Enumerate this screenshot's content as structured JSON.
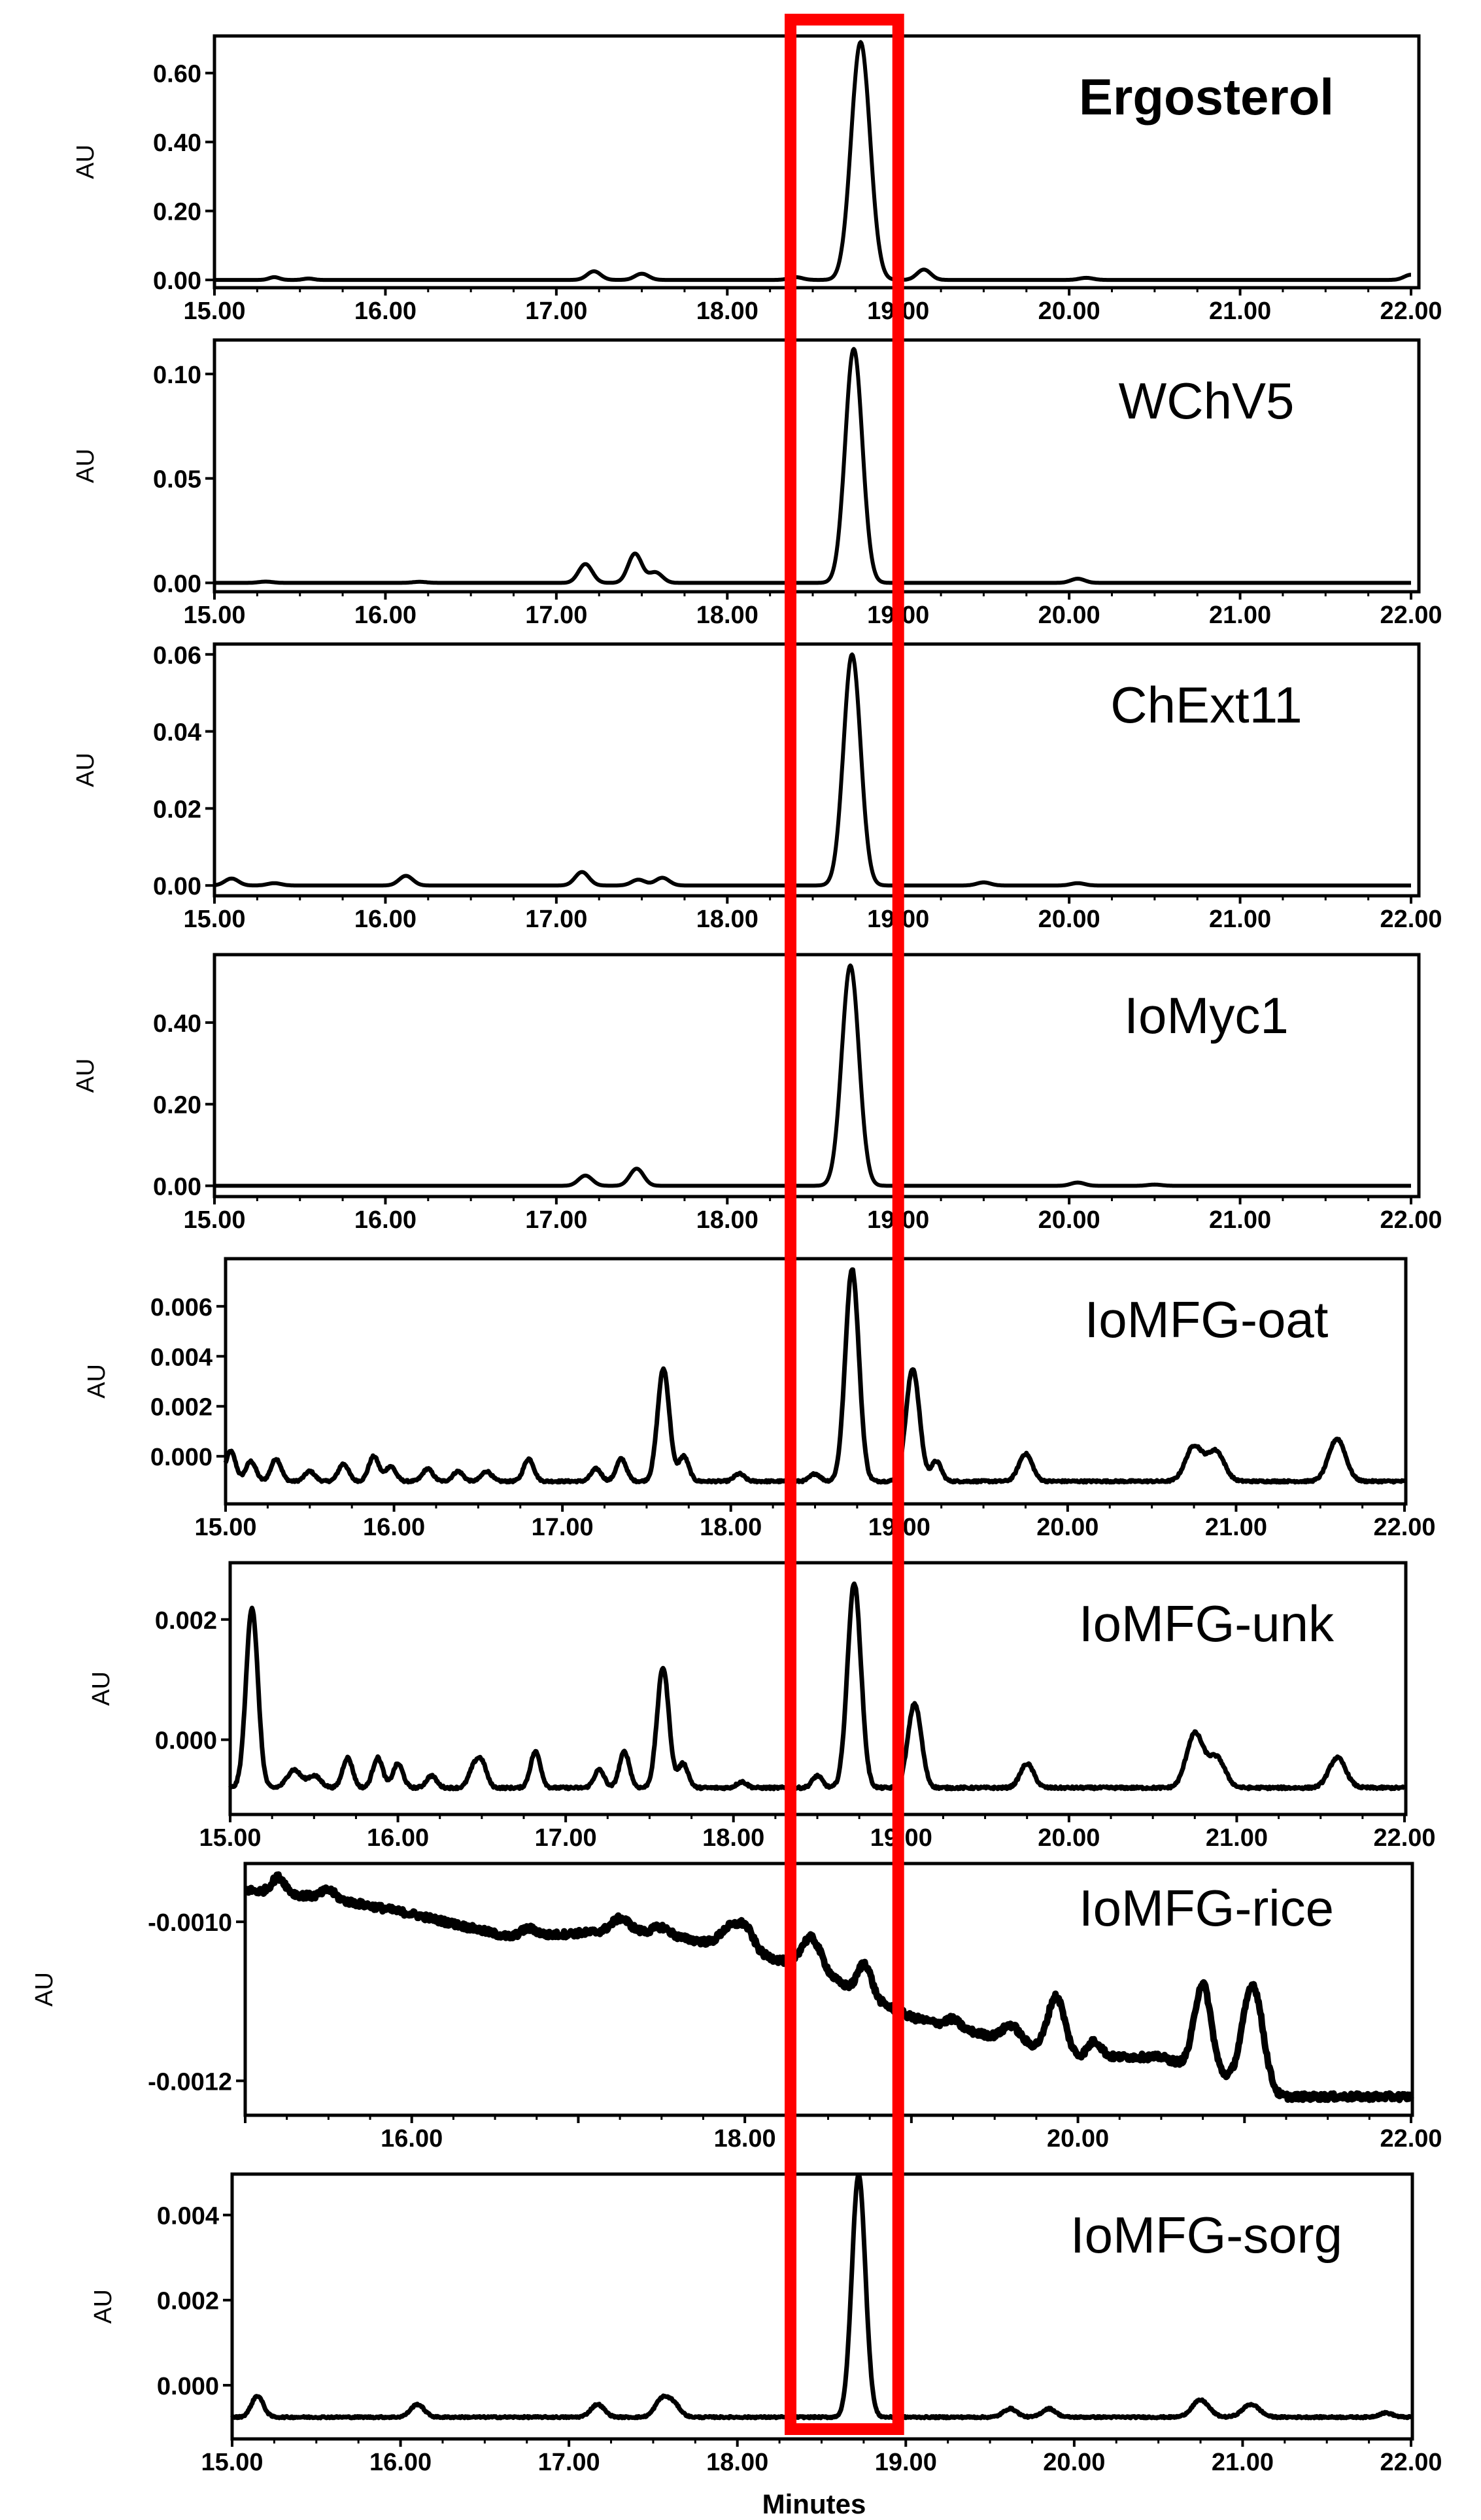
{
  "figure": {
    "x_axis_label": "Minutes",
    "y_axis_label": "AU",
    "highlight_color": "#ff0000",
    "trace_color": "#000000",
    "highlight_range": [
      18.37,
      19.0
    ]
  },
  "chart_data": [
    {
      "type": "line",
      "title": "Ergosterol",
      "title_bold": true,
      "ylabel": "AU",
      "xlim": [
        15.0,
        22.0
      ],
      "ylim": [
        -0.015,
        0.7
      ],
      "x_ticks": [
        "15.00",
        "16.00",
        "17.00",
        "18.00",
        "19.00",
        "20.00",
        "21.00",
        "22.00"
      ],
      "y_ticks": [
        0.0,
        0.2,
        0.4,
        0.6
      ],
      "y_tick_labels": [
        "0.00",
        "0.20",
        "0.40",
        "0.60"
      ],
      "baseline": 0.0,
      "peaks": [
        [
          15.35,
          0.008,
          0.03
        ],
        [
          15.55,
          0.004,
          0.03
        ],
        [
          17.22,
          0.025,
          0.04
        ],
        [
          17.5,
          0.018,
          0.04
        ],
        [
          18.4,
          0.008,
          0.04
        ],
        [
          18.78,
          0.69,
          0.055
        ],
        [
          19.15,
          0.03,
          0.04
        ],
        [
          20.1,
          0.006,
          0.04
        ],
        [
          22.0,
          0.015,
          0.04
        ]
      ]
    },
    {
      "type": "line",
      "title": "WChV5",
      "ylabel": "AU",
      "xlim": [
        15.0,
        22.0
      ],
      "ylim": [
        -0.003,
        0.115
      ],
      "x_ticks": [
        "15.00",
        "16.00",
        "17.00",
        "18.00",
        "19.00",
        "20.00",
        "21.00",
        "22.00"
      ],
      "y_ticks": [
        0.0,
        0.05,
        0.1
      ],
      "y_tick_labels": [
        "0.00",
        "0.05",
        "0.10"
      ],
      "baseline": 0.0,
      "peaks": [
        [
          15.3,
          0.0006,
          0.04
        ],
        [
          16.2,
          0.0005,
          0.04
        ],
        [
          17.17,
          0.009,
          0.04
        ],
        [
          17.46,
          0.014,
          0.04
        ],
        [
          17.58,
          0.005,
          0.04
        ],
        [
          18.74,
          0.112,
          0.05
        ],
        [
          20.05,
          0.002,
          0.04
        ]
      ]
    },
    {
      "type": "line",
      "title": "ChExt11",
      "ylabel": "AU",
      "xlim": [
        15.0,
        22.0
      ],
      "ylim": [
        -0.002,
        0.062
      ],
      "x_ticks": [
        "15.00",
        "16.00",
        "17.00",
        "18.00",
        "19.00",
        "20.00",
        "21.00",
        "22.00"
      ],
      "y_ticks": [
        0.0,
        0.02,
        0.04,
        0.06
      ],
      "y_tick_labels": [
        "0.00",
        "0.02",
        "0.04",
        "0.06"
      ],
      "baseline": 0.0,
      "peaks": [
        [
          15.1,
          0.0018,
          0.04
        ],
        [
          15.35,
          0.0006,
          0.04
        ],
        [
          16.12,
          0.0025,
          0.04
        ],
        [
          17.15,
          0.0035,
          0.04
        ],
        [
          17.48,
          0.0015,
          0.04
        ],
        [
          17.62,
          0.002,
          0.04
        ],
        [
          18.73,
          0.06,
          0.05
        ],
        [
          19.5,
          0.0008,
          0.04
        ],
        [
          20.05,
          0.0006,
          0.04
        ]
      ]
    },
    {
      "type": "line",
      "title": "IoMyc1",
      "ylabel": "AU",
      "xlim": [
        15.0,
        22.0
      ],
      "ylim": [
        -0.02,
        0.56
      ],
      "x_ticks": [
        "15.00",
        "16.00",
        "17.00",
        "18.00",
        "19.00",
        "20.00",
        "21.00",
        "22.00"
      ],
      "y_ticks": [
        0.0,
        0.2,
        0.4
      ],
      "y_tick_labels": [
        "0.00",
        "0.20",
        "0.40"
      ],
      "baseline": 0.0,
      "peaks": [
        [
          17.17,
          0.025,
          0.04
        ],
        [
          17.47,
          0.042,
          0.04
        ],
        [
          18.72,
          0.54,
          0.05
        ],
        [
          20.05,
          0.008,
          0.04
        ],
        [
          20.5,
          0.003,
          0.04
        ]
      ]
    },
    {
      "type": "line",
      "title": "IoMFG-oat",
      "ylabel": "AU",
      "xlim": [
        15.0,
        22.0
      ],
      "ylim": [
        -0.0018,
        0.0078
      ],
      "x_ticks": [
        "15.00",
        "16.00",
        "17.00",
        "18.00",
        "19.00",
        "20.00",
        "21.00",
        "22.00"
      ],
      "y_ticks": [
        0.0,
        0.002,
        0.004,
        0.006
      ],
      "y_tick_labels": [
        "0.000",
        "0.002",
        "0.004",
        "0.006"
      ],
      "baseline": -0.001,
      "noise": 4e-05,
      "peaks": [
        [
          15.03,
          0.0012,
          0.03
        ],
        [
          15.15,
          0.0008,
          0.03
        ],
        [
          15.3,
          0.0009,
          0.03
        ],
        [
          15.5,
          0.0004,
          0.03
        ],
        [
          15.7,
          0.0007,
          0.03
        ],
        [
          15.88,
          0.001,
          0.03
        ],
        [
          15.98,
          0.0006,
          0.03
        ],
        [
          16.2,
          0.0005,
          0.03
        ],
        [
          16.38,
          0.0004,
          0.03
        ],
        [
          16.55,
          0.0004,
          0.03
        ],
        [
          16.8,
          0.0009,
          0.03
        ],
        [
          17.2,
          0.0005,
          0.03
        ],
        [
          17.35,
          0.0009,
          0.03
        ],
        [
          17.6,
          0.0045,
          0.035
        ],
        [
          17.72,
          0.001,
          0.03
        ],
        [
          18.05,
          0.0003,
          0.03
        ],
        [
          18.5,
          0.0003,
          0.03
        ],
        [
          18.72,
          0.0085,
          0.04
        ],
        [
          19.08,
          0.0045,
          0.04
        ],
        [
          19.22,
          0.0008,
          0.03
        ],
        [
          19.75,
          0.0011,
          0.04
        ],
        [
          20.75,
          0.0014,
          0.05
        ],
        [
          20.88,
          0.0012,
          0.05
        ],
        [
          21.6,
          0.0017,
          0.05
        ]
      ]
    },
    {
      "type": "line",
      "title": "IoMFG-unk",
      "ylabel": "AU",
      "xlim": [
        15.0,
        22.0
      ],
      "ylim": [
        -0.0012,
        0.0029
      ],
      "x_ticks": [
        "15.00",
        "16.00",
        "17.00",
        "18.00",
        "19.00",
        "20.00",
        "21.00",
        "22.00"
      ],
      "y_ticks": [
        0.0,
        0.002
      ],
      "y_tick_labels": [
        "0.000",
        "0.002"
      ],
      "baseline": -0.0008,
      "noise": 2e-05,
      "peaks": [
        [
          15.13,
          0.003,
          0.035
        ],
        [
          15.38,
          0.0003,
          0.04
        ],
        [
          15.5,
          0.0002,
          0.04
        ],
        [
          15.7,
          0.0005,
          0.03
        ],
        [
          15.88,
          0.0005,
          0.03
        ],
        [
          16.0,
          0.0004,
          0.03
        ],
        [
          16.2,
          0.0002,
          0.03
        ],
        [
          16.45,
          0.0003,
          0.03
        ],
        [
          16.5,
          0.0004,
          0.03
        ],
        [
          16.82,
          0.0006,
          0.03
        ],
        [
          17.2,
          0.0003,
          0.03
        ],
        [
          17.35,
          0.0006,
          0.03
        ],
        [
          17.58,
          0.002,
          0.035
        ],
        [
          17.7,
          0.0004,
          0.03
        ],
        [
          18.05,
          0.0001,
          0.03
        ],
        [
          18.5,
          0.0002,
          0.03
        ],
        [
          18.72,
          0.0034,
          0.04
        ],
        [
          19.08,
          0.0014,
          0.04
        ],
        [
          19.75,
          0.0004,
          0.04
        ],
        [
          20.75,
          0.0009,
          0.05
        ],
        [
          20.88,
          0.0005,
          0.05
        ],
        [
          21.6,
          0.0005,
          0.05
        ]
      ]
    },
    {
      "type": "line",
      "title": "IoMFG-rice",
      "ylabel": "AU",
      "xlim": [
        15.0,
        22.0
      ],
      "ylim": [
        -0.00124,
        -0.00093
      ],
      "x_ticks": [
        "16.00",
        "18.00",
        "20.00",
        "22.00"
      ],
      "y_ticks": [
        -0.001,
        -0.0012
      ],
      "y_tick_labels": [
        "-0.0010",
        "-0.0012"
      ],
      "baseline_points": [
        [
          15.0,
          -0.00096
        ],
        [
          15.5,
          -0.00097
        ],
        [
          16.0,
          -0.00099
        ],
        [
          16.6,
          -0.00102
        ],
        [
          17.3,
          -0.00101
        ],
        [
          17.9,
          -0.00103
        ],
        [
          18.4,
          -0.00106
        ],
        [
          19.0,
          -0.00112
        ],
        [
          20.0,
          -0.00117
        ],
        [
          20.5,
          -0.00117
        ],
        [
          21.2,
          -0.00122
        ],
        [
          22.0,
          -0.00122
        ]
      ],
      "noise": 4e-06,
      "peaks": [
        [
          15.2,
          2e-05,
          0.04
        ],
        [
          15.5,
          1e-05,
          0.04
        ],
        [
          16.7,
          1e-05,
          0.05
        ],
        [
          17.25,
          1.5e-05,
          0.05
        ],
        [
          17.5,
          1e-05,
          0.05
        ],
        [
          17.9,
          2e-05,
          0.05
        ],
        [
          18.0,
          3e-05,
          0.05
        ],
        [
          18.4,
          4e-05,
          0.06
        ],
        [
          18.72,
          4e-05,
          0.04
        ],
        [
          19.25,
          1e-05,
          0.04
        ],
        [
          19.6,
          2e-05,
          0.05
        ],
        [
          19.87,
          7e-05,
          0.05
        ],
        [
          20.1,
          2e-05,
          0.04
        ],
        [
          20.75,
          0.00011,
          0.05
        ],
        [
          21.05,
          0.00013,
          0.06
        ]
      ]
    },
    {
      "type": "line",
      "title": "IoMFG-sorg",
      "ylabel": "AU",
      "xlim": [
        15.0,
        22.0
      ],
      "ylim": [
        -0.0012,
        0.0049
      ],
      "x_ticks": [
        "15.00",
        "16.00",
        "17.00",
        "18.00",
        "19.00",
        "20.00",
        "21.00",
        "22.00"
      ],
      "y_ticks": [
        0.0,
        0.002,
        0.004
      ],
      "y_tick_labels": [
        "0.000",
        "0.002",
        "0.004"
      ],
      "baseline": -0.00075,
      "noise": 2e-05,
      "peaks": [
        [
          15.15,
          0.0005,
          0.035
        ],
        [
          16.1,
          0.0003,
          0.04
        ],
        [
          17.17,
          0.0003,
          0.04
        ],
        [
          17.55,
          0.0004,
          0.04
        ],
        [
          17.62,
          0.0003,
          0.04
        ],
        [
          18.72,
          0.0057,
          0.04
        ],
        [
          19.62,
          0.0002,
          0.04
        ],
        [
          19.85,
          0.0002,
          0.04
        ],
        [
          20.75,
          0.0004,
          0.05
        ],
        [
          21.05,
          0.0003,
          0.05
        ],
        [
          21.85,
          0.0001,
          0.04
        ]
      ]
    }
  ]
}
